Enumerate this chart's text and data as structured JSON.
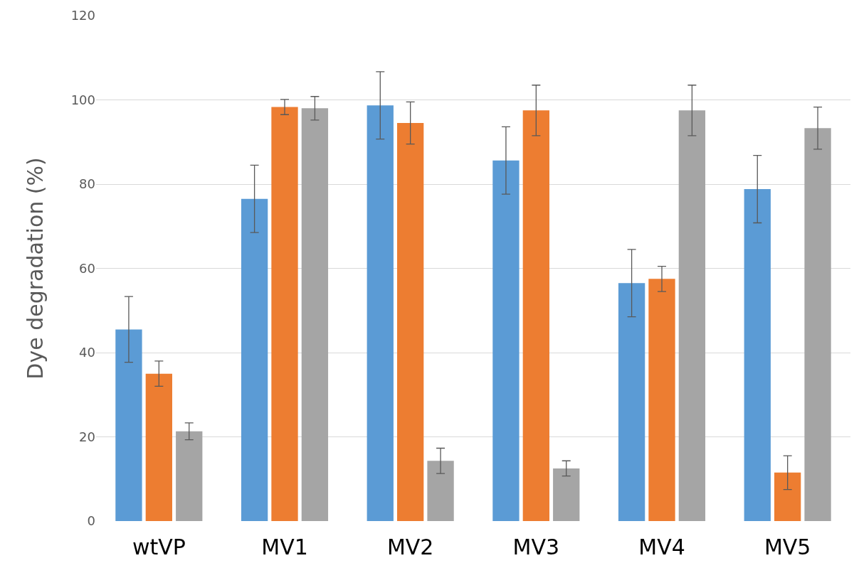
{
  "chart_data": {
    "type": "bar",
    "ylabel": "Dye degradation (%)",
    "categories": [
      "wtVP",
      "MV1",
      "MV2",
      "MV3",
      "MV4",
      "MV5"
    ],
    "series": [
      {
        "color": "#5b9bd5",
        "values": [
          45.5,
          76.5,
          98.7,
          85.6,
          56.5,
          78.8
        ],
        "errors": [
          7.8,
          8,
          8,
          8,
          8,
          8
        ]
      },
      {
        "color": "#ed7d31",
        "values": [
          35,
          98.3,
          94.5,
          97.5,
          57.5,
          11.5
        ],
        "errors": [
          3,
          1.8,
          5,
          6,
          3,
          4
        ]
      },
      {
        "color": "#a5a5a5",
        "values": [
          21.3,
          98,
          14.3,
          12.5,
          97.5,
          93.3
        ],
        "errors": [
          2,
          2.8,
          3,
          1.8,
          6,
          5
        ]
      }
    ],
    "ylim": [
      0,
      120
    ],
    "yticks": [
      0,
      20,
      40,
      60,
      80,
      100,
      120
    ],
    "grid": "y"
  }
}
